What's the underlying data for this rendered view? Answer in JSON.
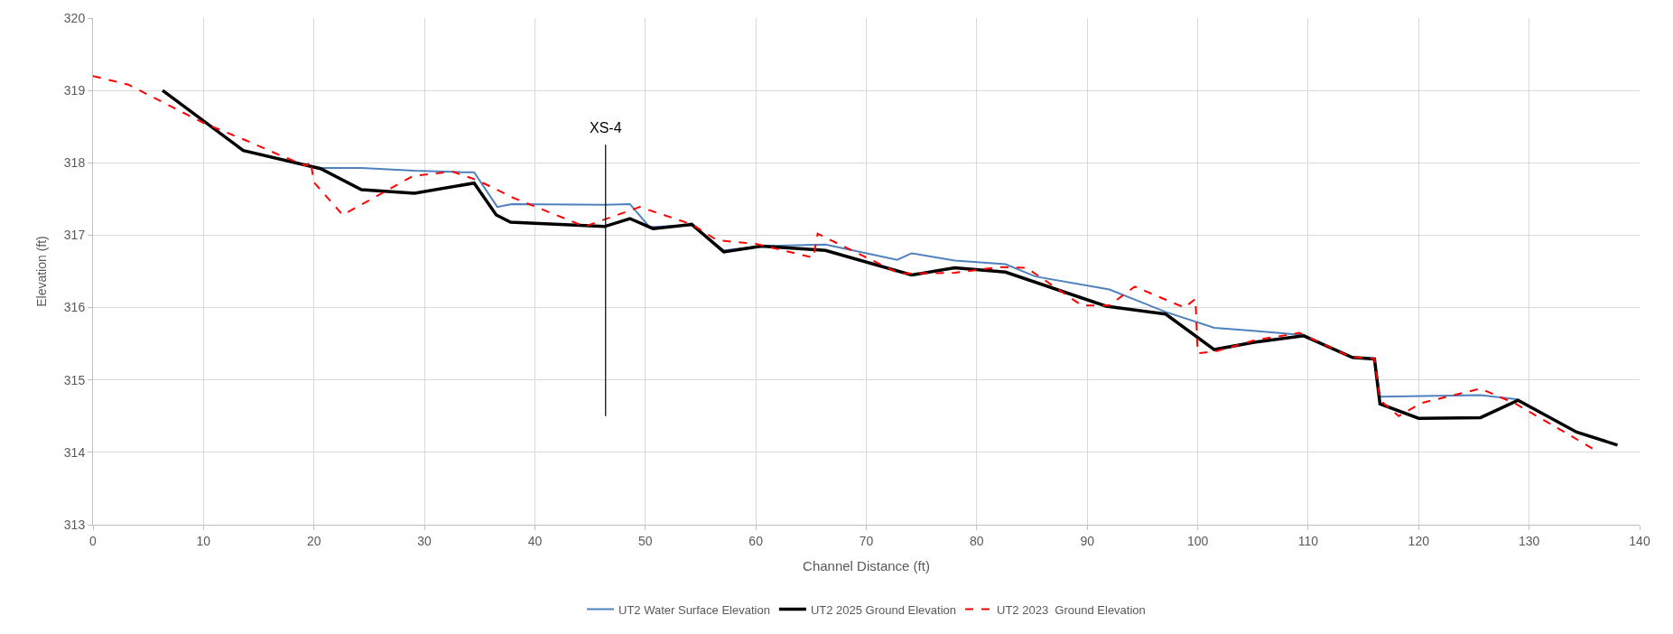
{
  "chart_data": {
    "type": "line",
    "xlabel": "Channel Distance (ft)",
    "ylabel": "Elevation (ft)",
    "xlim": [
      0,
      140
    ],
    "xticks": [
      0,
      10,
      20,
      30,
      40,
      50,
      60,
      70,
      80,
      90,
      100,
      110,
      120,
      130,
      140
    ],
    "ylim": [
      313,
      320
    ],
    "yticks": [
      313,
      314,
      315,
      316,
      317,
      318,
      319,
      320
    ],
    "grid": true,
    "legend": "bottom",
    "marker": "none",
    "annotations": [
      {
        "text": "XS-4",
        "x": 46.4,
        "y": 318.25
      }
    ],
    "series": [
      {
        "name": "UT2 Water Surface Elevation",
        "color": "#4f81bd",
        "line_style": "solid",
        "x": [
          20.6,
          24.3,
          29.1,
          33.5,
          34.5,
          36.6,
          37.9,
          46.3,
          48.6,
          50.4,
          54.2,
          57.1,
          60.5,
          66.3,
          72.8,
          74.1,
          78,
          82.6,
          85.3,
          92,
          97.1,
          101.5,
          105,
          109.6,
          114,
          116,
          116.5,
          125.6,
          129
        ],
        "values": [
          317.93,
          317.93,
          317.89,
          317.87,
          317.87,
          317.39,
          317.43,
          317.42,
          317.43,
          317.11,
          317.14,
          316.79,
          316.85,
          316.87,
          316.66,
          316.75,
          316.65,
          316.6,
          316.43,
          316.25,
          315.94,
          315.72,
          315.68,
          315.62,
          315.31,
          315.29,
          314.77,
          314.79,
          314.73
        ]
      },
      {
        "name": "UT2 2025 Ground Elevation",
        "color": "#000000",
        "line_style": "solid",
        "x": [
          6.3,
          13.6,
          20.6,
          24.3,
          29.1,
          34.5,
          36.5,
          37.8,
          46.3,
          48.6,
          50.7,
          54.2,
          57.1,
          60.5,
          66.3,
          74.1,
          78,
          82.6,
          91.7,
          97.1,
          101.5,
          105.1,
          109.6,
          114,
          116,
          116.5,
          120,
          125.6,
          129,
          134.3,
          138
        ],
        "values": [
          319.0,
          318.17,
          317.92,
          317.63,
          317.58,
          317.72,
          317.28,
          317.18,
          317.12,
          317.23,
          317.09,
          317.15,
          316.77,
          316.85,
          316.79,
          316.45,
          316.55,
          316.49,
          316.02,
          315.91,
          315.42,
          315.52,
          315.61,
          315.31,
          315.29,
          314.67,
          314.47,
          314.48,
          314.72,
          314.28,
          314.1
        ]
      },
      {
        "name": "UT2 2023  Ground Elevation",
        "color": "#ff0000",
        "line_style": "dashed",
        "x": [
          0,
          3.2,
          10,
          14,
          17,
          19.3,
          19.7,
          20,
          22.6,
          29,
          32.5,
          34.8,
          38,
          44.5,
          49.5,
          54.2,
          56.5,
          60,
          65.2,
          65.6,
          73,
          78,
          82,
          84.5,
          89.5,
          92,
          94.3,
          98.8,
          99.8,
          100,
          101.5,
          105.2,
          109.2,
          113.8,
          116,
          116.5,
          118.2,
          120.2,
          125.6,
          128.8,
          136
        ],
        "values": [
          319.2,
          319.08,
          318.55,
          318.3,
          318.1,
          317.96,
          318.02,
          317.73,
          317.28,
          317.82,
          317.88,
          317.76,
          317.52,
          317.12,
          317.39,
          317.15,
          316.93,
          316.88,
          316.69,
          317.02,
          316.47,
          316.48,
          316.56,
          316.55,
          316.03,
          316.03,
          316.29,
          316.0,
          316.12,
          315.37,
          315.39,
          315.55,
          315.65,
          315.32,
          315.29,
          314.72,
          314.5,
          314.68,
          314.88,
          314.67,
          314.03
        ]
      },
      {
        "color": "#000000",
        "line_style": "solid",
        "x": [
          46.4,
          46.4
        ],
        "values": [
          314.5,
          318.25
        ]
      }
    ]
  }
}
